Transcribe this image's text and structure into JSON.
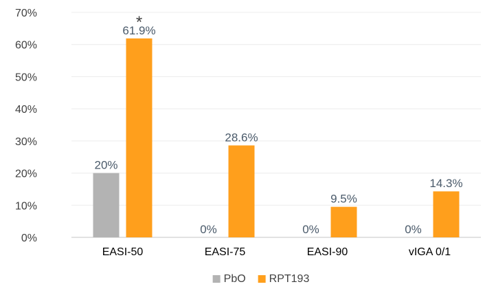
{
  "chart_data": {
    "type": "bar",
    "categories": [
      "EASI-50",
      "EASI-75",
      "EASI-90",
      "vIGA 0/1"
    ],
    "series": [
      {
        "name": "PbO",
        "values": [
          20,
          0,
          0,
          0
        ],
        "labels": [
          "20%",
          "0%",
          "0%",
          "0%"
        ],
        "color": "#b3b3b3"
      },
      {
        "name": "RPT193",
        "values": [
          61.9,
          28.6,
          9.5,
          14.3
        ],
        "labels": [
          "61.9%",
          "28.6%",
          "9.5%",
          "14.3%"
        ],
        "color": "#ff9f1c"
      }
    ],
    "y_ticks": [
      "0%",
      "10%",
      "20%",
      "30%",
      "40%",
      "50%",
      "60%",
      "70%"
    ],
    "ylim": [
      0,
      70
    ],
    "grid": true,
    "legend": "bottom-center",
    "annotations": [
      {
        "text": "*",
        "category": "EASI-50",
        "series": "RPT193"
      }
    ],
    "title": "",
    "xlabel": "",
    "ylabel": ""
  },
  "colors": {
    "label_text": "#4a5a6a",
    "axis": "#d9d9d9"
  }
}
